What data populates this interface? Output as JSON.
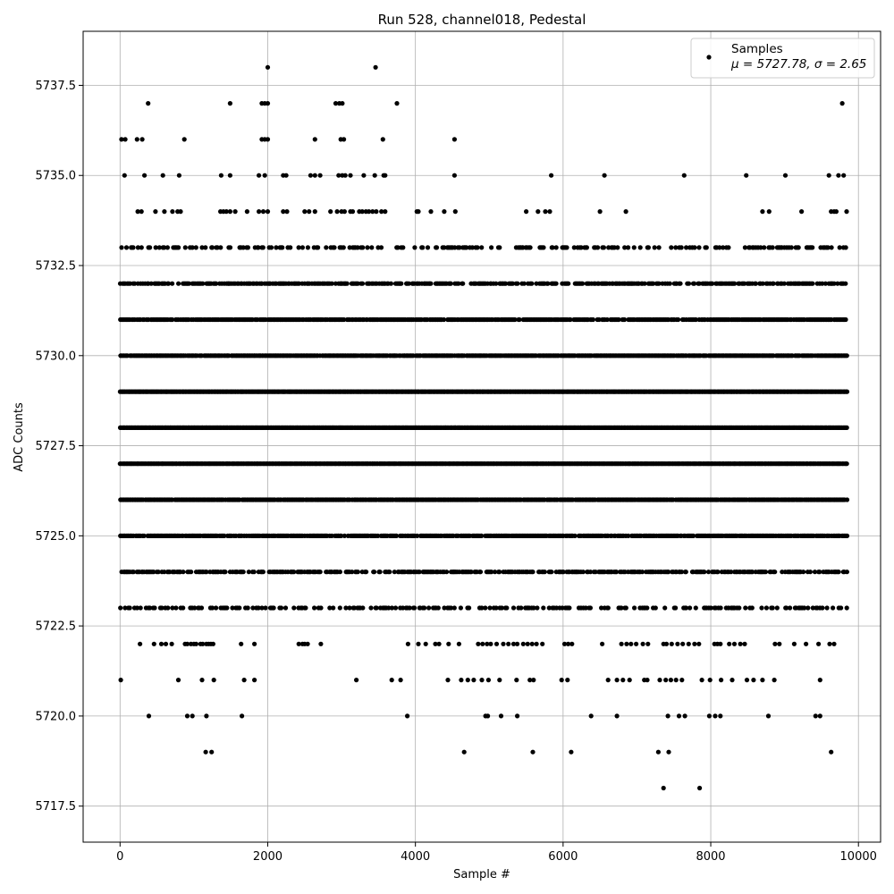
{
  "chart_data": {
    "type": "scatter",
    "title": "Run 528, channel018, Pedestal",
    "xlabel": "Sample #",
    "ylabel": "ADC Counts",
    "xlim": [
      -500,
      10300
    ],
    "ylim": [
      5716.5,
      5739.0
    ],
    "xticks": [
      0,
      2000,
      4000,
      6000,
      8000,
      10000
    ],
    "xtick_labels": [
      "0",
      "2000",
      "4000",
      "6000",
      "8000",
      "10000"
    ],
    "yticks": [
      5717.5,
      5720.0,
      5722.5,
      5725.0,
      5727.5,
      5730.0,
      5732.5,
      5735.0,
      5737.5
    ],
    "ytick_labels": [
      "5717.5",
      "5720.0",
      "5722.5",
      "5725.0",
      "5727.5",
      "5730.0",
      "5732.5",
      "5735.0",
      "5737.5"
    ],
    "grid": true,
    "legend": {
      "placement": "upper right",
      "entry": "Samples",
      "stats_text": "μ = 5727.78, σ = 2.65"
    },
    "marker_color": "#000000",
    "series": [
      {
        "name": "Samples",
        "points": [
          {
            "level": 5738,
            "x": [
              2000,
              3460
            ]
          },
          {
            "level": 5737,
            "x": [
              380,
              1490,
              1920,
              1960,
              2000,
              2920,
              2970,
              3010,
              3750,
              9780
            ]
          },
          {
            "level": 5736,
            "x": [
              20,
              70,
              230,
              300,
              870,
              1920,
              1960,
              2000,
              2640,
              2990,
              3030,
              3560,
              4530
            ]
          },
          {
            "level": 5735,
            "x": [
              60,
              330,
              580,
              800,
              1370,
              1490,
              1880,
              1960,
              2210,
              2250,
              2580,
              2640,
              2710,
              2960,
              3010,
              3050,
              3120,
              3300,
              3450,
              3570,
              3590,
              4530,
              5840,
              6560,
              7640,
              8480,
              9010,
              9600,
              9730,
              9800
            ]
          },
          {
            "level": 5734,
            "x": [
              240,
              290,
              480,
              600,
              710,
              780,
              820,
              1360,
              1400,
              1440,
              1490,
              1560,
              1720,
              1880,
              1940,
              2000,
              2210,
              2260,
              2500,
              2560,
              2640,
              2850,
              2940,
              3000,
              3040,
              3120,
              3150,
              3240,
              3280,
              3330,
              3370,
              3420,
              3470,
              3540,
              3590,
              4020,
              4040,
              4210,
              4390,
              4540,
              5500,
              5660,
              5760,
              5820,
              6500,
              6850,
              8700,
              8790,
              9230,
              9630,
              9670,
              9700,
              9840
            ]
          }
        ],
        "dense_levels": [
          {
            "level": 5733,
            "density": 0.35
          },
          {
            "level": 5732,
            "density": 0.65
          },
          {
            "level": 5731,
            "density": 0.85
          },
          {
            "level": 5730,
            "density": 0.95
          },
          {
            "level": 5729,
            "density": 1.0
          },
          {
            "level": 5728,
            "density": 1.0
          },
          {
            "level": 5727,
            "density": 1.0
          },
          {
            "level": 5726,
            "density": 0.95
          },
          {
            "level": 5725,
            "density": 0.85
          },
          {
            "level": 5724,
            "density": 0.6
          },
          {
            "level": 5723,
            "density": 0.35
          }
        ],
        "sparse_low": [
          {
            "level": 5722,
            "x": [
              270,
              460,
              560,
              620,
              700,
              880,
              910,
              960,
              1000,
              1030,
              1090,
              1120,
              1170,
              1200,
              1230,
              1260,
              1640,
              1820,
              2420,
              2470,
              2500,
              2540,
              2720,
              3900,
              4040,
              4140,
              4270,
              4320,
              4450,
              4590,
              4850,
              4910,
              4970,
              5020,
              5100,
              5190,
              5260,
              5330,
              5380,
              5460,
              5520,
              5580,
              5640,
              5720,
              6020,
              6070,
              6120,
              6530,
              6790,
              6860,
              6920,
              6990,
              7080,
              7150,
              7360,
              7400,
              7470,
              7550,
              7620,
              7700,
              7780,
              7840,
              8050,
              8090,
              8130,
              8250,
              8320,
              8400,
              8460,
              8870,
              8930,
              9130,
              9290,
              9460,
              9610,
              9670
            ]
          },
          {
            "level": 5721,
            "x": [
              10,
              790,
              1110,
              1270,
              1680,
              1820,
              3200,
              3680,
              3800,
              4440,
              4620,
              4710,
              4790,
              4900,
              4990,
              5140,
              5370,
              5550,
              5600,
              5980,
              6060,
              6610,
              6730,
              6810,
              6900,
              7100,
              7140,
              7310,
              7390,
              7460,
              7530,
              7610,
              7880,
              7990,
              8140,
              8290,
              8490,
              8580,
              8700,
              8860,
              9480
            ]
          },
          {
            "level": 5720,
            "x": [
              390,
              910,
              980,
              1170,
              1650,
              3890,
              4950,
              4980,
              5160,
              5380,
              6380,
              6730,
              7420,
              7570,
              7650,
              7980,
              8060,
              8130,
              8780,
              9420,
              9480
            ]
          },
          {
            "level": 5719,
            "x": [
              1160,
              1240,
              4660,
              5590,
              6110,
              7290,
              7430,
              9630
            ]
          },
          {
            "level": 5718,
            "x": [
              7360,
              7850
            ]
          }
        ]
      }
    ]
  }
}
